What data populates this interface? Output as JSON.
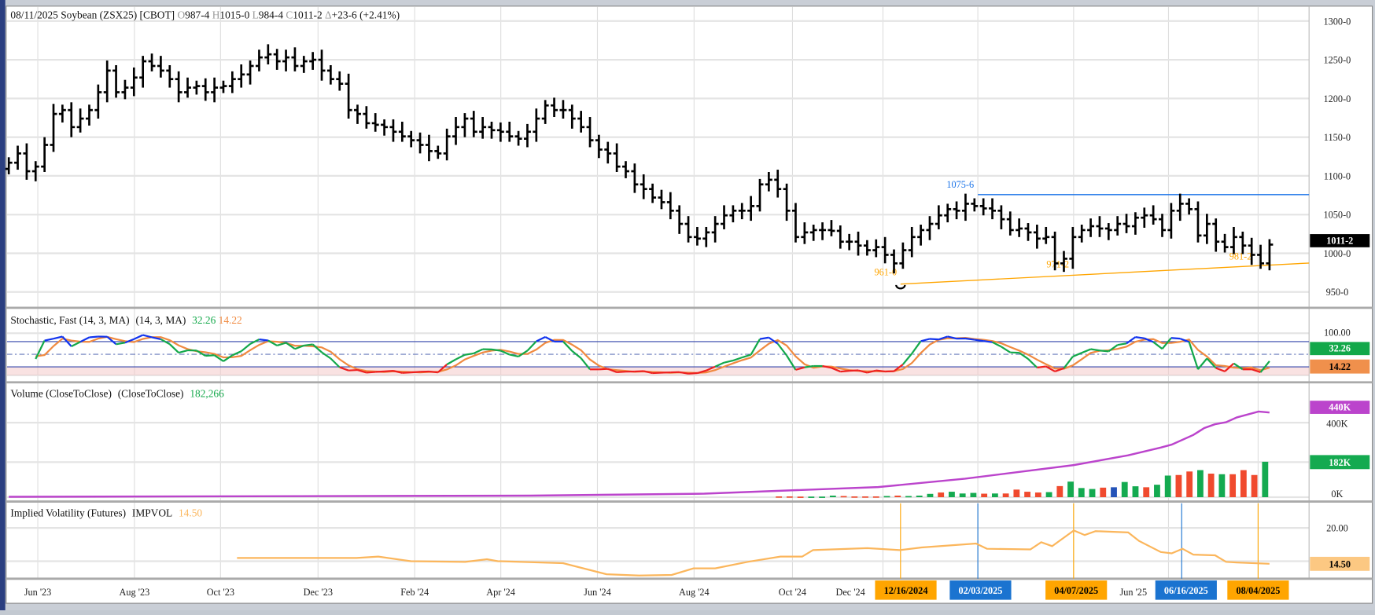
{
  "header": {
    "date": "08/11/2025",
    "symbol": "Soybean (ZSX25) [CBOT]",
    "o_label": "O",
    "open": "987-4",
    "h_label": "H",
    "high": "1015-0",
    "l_label": "L",
    "low": "984-4",
    "c_label": "C",
    "close": "1011-2",
    "delta_label": "Δ",
    "change": "+23-6 (+2.41%)"
  },
  "price_axis": {
    "labels": [
      "1300-0",
      "1250-0",
      "1200-0",
      "1150-0",
      "1100-0",
      "1050-0",
      "1000-0",
      "950-0"
    ],
    "values": [
      1300,
      1250,
      1200,
      1150,
      1100,
      1050,
      1000,
      950
    ],
    "last_label": "1011-2",
    "last_value": 1011.25
  },
  "annotations": {
    "resistance": {
      "label": "1075-6",
      "value": 1075.75,
      "color": "#1a73e8"
    },
    "lows": [
      {
        "label": "961-0",
        "value": 961.0
      },
      {
        "label": "971-2",
        "value": 971.25
      },
      {
        "label": "981-2",
        "value": 981.25
      }
    ],
    "low_color": "#ffa500"
  },
  "stochastic": {
    "title": "Stochastic, Fast (14, 3, MA)",
    "params": "(14, 3, MA)",
    "k_value": "32.26",
    "d_value": "14.22",
    "axis_label": "100.00",
    "k_color": "#13a84a",
    "d_color": "#f08a40"
  },
  "volume": {
    "title": "Volume (CloseToClose)",
    "params": "(CloseToClose)",
    "value": "182,266",
    "axis": {
      "oi_box": "440K",
      "tick_400": "400K",
      "vol_box": "182K",
      "tick_0": "0K"
    },
    "purple": "#bb44cc",
    "green": "#14aa50",
    "red": "#f04a2e",
    "blue": "#2453b8"
  },
  "iv": {
    "title": "Implied Volatility (Futures)",
    "code": "IMPVOL",
    "value": "14.50",
    "axis_label": "20.00",
    "box_label": "14.50",
    "color": "#fbb65c"
  },
  "x_axis": {
    "labels": [
      "Jun '23",
      "Aug '23",
      "Oct '23",
      "Dec '23",
      "Feb '24",
      "Apr '24",
      "Jun '24",
      "Aug '24",
      "Oct '24",
      "Dec '24",
      "Jun '25"
    ]
  },
  "date_markers": [
    {
      "label": "12/16/2024",
      "color": "#ffa500"
    },
    {
      "label": "02/03/2025",
      "color": "#1a73d0"
    },
    {
      "label": "04/07/2025",
      "color": "#ffa500"
    },
    {
      "label": "06/16/2025",
      "color": "#1a73d0"
    },
    {
      "label": "08/04/2025",
      "color": "#ffa500"
    }
  ],
  "chart_data": {
    "type": "bar",
    "title": "Soybean (ZSX25) [CBOT] weekly",
    "ylim": [
      950,
      1300
    ],
    "weekly_closes": [
      1117,
      1129,
      1106,
      1112,
      1140,
      1180,
      1185,
      1163,
      1174,
      1185,
      1208,
      1236,
      1208,
      1214,
      1227,
      1248,
      1242,
      1236,
      1225,
      1208,
      1214,
      1216,
      1208,
      1214,
      1216,
      1225,
      1231,
      1242,
      1253,
      1257,
      1248,
      1253,
      1242,
      1248,
      1250,
      1236,
      1225,
      1219,
      1185,
      1180,
      1168,
      1166,
      1163,
      1157,
      1151,
      1146,
      1140,
      1132,
      1129,
      1151,
      1163,
      1174,
      1157,
      1163,
      1159,
      1157,
      1151,
      1148,
      1157,
      1174,
      1191,
      1185,
      1185,
      1174,
      1163,
      1146,
      1134,
      1129,
      1112,
      1106,
      1089,
      1083,
      1072,
      1066,
      1055,
      1038,
      1021,
      1019,
      1027,
      1038,
      1049,
      1055,
      1055,
      1061,
      1089,
      1095,
      1083,
      1055,
      1021,
      1027,
      1030,
      1030,
      1029,
      1015,
      1015,
      1010,
      1004,
      1008,
      998,
      987,
      1004,
      1021,
      1030,
      1038,
      1049,
      1057,
      1055,
      1064,
      1061,
      1058,
      1055,
      1044,
      1030,
      1032,
      1027,
      1019,
      1021,
      987,
      993,
      1021,
      1030,
      1035,
      1032,
      1030,
      1038,
      1035,
      1046,
      1049,
      1044,
      1030,
      1055,
      1064,
      1057,
      1023,
      1038,
      1015,
      1008,
      1021,
      1010,
      998,
      987,
      1011.25
    ],
    "volume_k_last_weeks": [
      4,
      4,
      3,
      3,
      3,
      8,
      6,
      4,
      4,
      4,
      6,
      8,
      6,
      8,
      17,
      24,
      28,
      19,
      22,
      18,
      19,
      19,
      39,
      28,
      24,
      26,
      57,
      80,
      47,
      42,
      49,
      51,
      78,
      56,
      51,
      64,
      111,
      114,
      132,
      139,
      121,
      118,
      118,
      139,
      114,
      182
    ],
    "volume_colors": [
      "r",
      "r",
      "r",
      "g",
      "g",
      "g",
      "r",
      "r",
      "r",
      "r",
      "g",
      "r",
      "g",
      "g",
      "g",
      "r",
      "g",
      "g",
      "g",
      "r",
      "g",
      "r",
      "r",
      "r",
      "r",
      "g",
      "r",
      "g",
      "g",
      "g",
      "r",
      "b",
      "g",
      "g",
      "r",
      "g",
      "g",
      "r",
      "r",
      "g",
      "r",
      "g",
      "r",
      "r",
      "r",
      "g"
    ],
    "open_interest_k": [
      [
        0,
        2
      ],
      [
        48,
        8
      ],
      [
        64,
        18
      ],
      [
        80,
        52
      ],
      [
        88,
        95
      ],
      [
        98,
        165
      ],
      [
        103,
        215
      ],
      [
        106,
        255
      ],
      [
        107,
        270
      ],
      [
        109,
        320
      ],
      [
        110,
        355
      ],
      [
        111,
        375
      ],
      [
        112,
        385
      ],
      [
        113,
        410
      ],
      [
        115,
        440
      ],
      [
        116,
        435
      ]
    ],
    "implied_volatility": [
      [
        21,
        15.4
      ],
      [
        32,
        15.4
      ],
      [
        34,
        15.6
      ],
      [
        37,
        14.9
      ],
      [
        42,
        14.8
      ],
      [
        44,
        15.2
      ],
      [
        45,
        14.9
      ],
      [
        51,
        14.6
      ],
      [
        55,
        12.9
      ],
      [
        58,
        12.7
      ],
      [
        61,
        12.8
      ],
      [
        63,
        13.8
      ],
      [
        65,
        13.8
      ],
      [
        68,
        14.8
      ],
      [
        71,
        15.6
      ],
      [
        73,
        15.6
      ],
      [
        74,
        16.6
      ],
      [
        79,
        16.9
      ],
      [
        82,
        16.6
      ],
      [
        84,
        17.0
      ],
      [
        89,
        17.6
      ],
      [
        90,
        16.8
      ],
      [
        94,
        16.7
      ],
      [
        95,
        17.8
      ],
      [
        96,
        17.2
      ],
      [
        98,
        19.6
      ],
      [
        99,
        18.9
      ],
      [
        100,
        19.5
      ],
      [
        103,
        19.3
      ],
      [
        104,
        18.0
      ],
      [
        106,
        16.3
      ],
      [
        107,
        16.1
      ],
      [
        108,
        16.8
      ],
      [
        109,
        15.9
      ],
      [
        111,
        15.8
      ],
      [
        112,
        14.8
      ],
      [
        113,
        14.7
      ],
      [
        116,
        14.5
      ]
    ],
    "stochastic_last": {
      "k": 32.26,
      "d": 14.22
    },
    "iv_last": 14.5
  }
}
